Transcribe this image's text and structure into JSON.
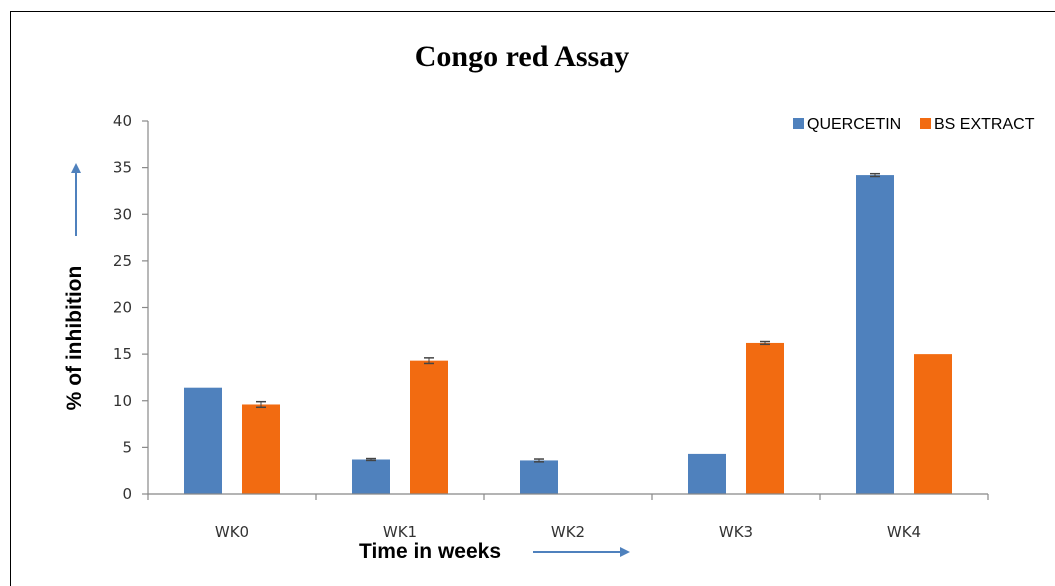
{
  "chart_data": {
    "type": "bar",
    "title": "Congo red Assay",
    "xlabel": "Time in weeks",
    "ylabel": "% of inhibition",
    "categories": [
      "WK0",
      "WK1",
      "WK2",
      "WK3",
      "WK4"
    ],
    "series": [
      {
        "name": "QUERCETIN",
        "values": [
          11.4,
          3.7,
          3.6,
          4.3,
          34.2
        ],
        "errors": [
          0,
          0.1,
          0.15,
          0,
          0.15
        ],
        "color": "#4f81bd"
      },
      {
        "name": "BS EXTRACT",
        "values": [
          9.6,
          14.3,
          0,
          16.2,
          15.0
        ],
        "errors": [
          0.3,
          0.3,
          0,
          0.15,
          0
        ],
        "color": "#f26b11"
      }
    ],
    "ylim": [
      0,
      40
    ],
    "yticks": [
      0,
      5,
      10,
      15,
      20,
      25,
      30,
      35,
      40
    ],
    "grid": false,
    "legend": "top-right",
    "axis_arrow_color": "#4f81bd"
  }
}
